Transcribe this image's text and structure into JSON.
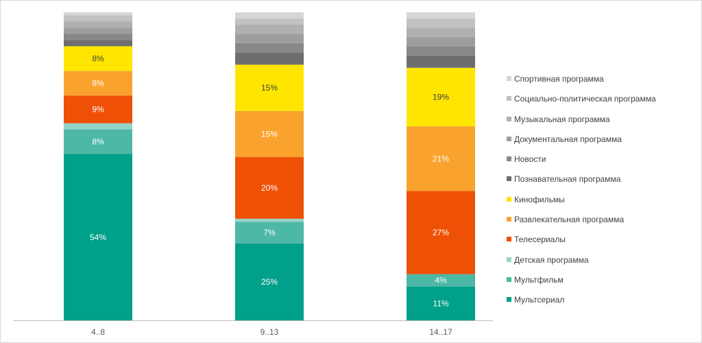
{
  "chart_data": {
    "type": "bar",
    "stacked": true,
    "normalized_100_percent": true,
    "categories": [
      "4..8",
      "9..13",
      "14..17"
    ],
    "series": [
      {
        "name": "Мультсериал",
        "color": "#00A08A",
        "values": [
          54,
          25,
          11
        ]
      },
      {
        "name": "Мультфильм",
        "color": "#4DB8A5",
        "values": [
          8,
          7,
          4
        ]
      },
      {
        "name": "Детская программа",
        "color": "#94D3C8",
        "values": [
          2,
          1,
          0
        ]
      },
      {
        "name": "Телесериалы",
        "color": "#EE5106",
        "values": [
          9,
          20,
          27
        ]
      },
      {
        "name": "Развлекательная программа",
        "color": "#F9A32E",
        "values": [
          8,
          15,
          21
        ]
      },
      {
        "name": "Кинофильмы",
        "color": "#FFE600",
        "values": [
          8,
          15,
          19
        ]
      },
      {
        "name": "Познавательная программа",
        "color": "#6E6E6E",
        "values": [
          2,
          4,
          4
        ]
      },
      {
        "name": "Новости",
        "color": "#888888",
        "values": [
          2,
          3,
          3
        ]
      },
      {
        "name": "Документальная программа",
        "color": "#9E9E9E",
        "values": [
          2,
          3,
          3
        ]
      },
      {
        "name": "Музыкальная программа",
        "color": "#B0B0B0",
        "values": [
          2,
          3,
          3
        ]
      },
      {
        "name": "Социально-политическая программа",
        "color": "#C2C2C2",
        "values": [
          2,
          2,
          3
        ]
      },
      {
        "name": "Спортивная программа",
        "color": "#D6D6D6",
        "values": [
          1,
          2,
          2
        ]
      }
    ],
    "data_labels": [
      {
        "series": "Мультсериал",
        "labels": [
          "54%",
          "25%",
          "11%"
        ]
      },
      {
        "series": "Мультфильм",
        "labels": [
          "8%",
          "7%",
          "4%"
        ]
      },
      {
        "series": "Телесериалы",
        "labels": [
          "9%",
          "20%",
          "27%"
        ]
      },
      {
        "series": "Развлекательная программа",
        "labels": [
          "8%",
          "15%",
          "21%"
        ]
      },
      {
        "series": "Кинофильмы",
        "labels": [
          "8%",
          "15%",
          "19%"
        ]
      }
    ],
    "ylim": [
      0,
      100
    ],
    "grid": false,
    "legend_position": "right",
    "legend_order": "reversed",
    "title": "",
    "xlabel": "",
    "ylabel": ""
  }
}
